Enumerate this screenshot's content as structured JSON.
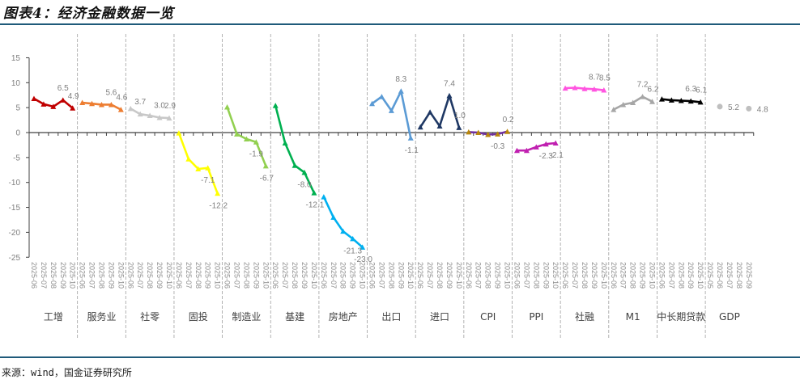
{
  "title": "图表4：经济金融数据一览",
  "source": "来源：wind，国金证券研究所",
  "chart_data": {
    "type": "line",
    "title": "图表4：经济金融数据一览",
    "xlabel": "",
    "ylabel": "",
    "ylim": [
      -25,
      15
    ],
    "yticks": [
      15,
      10,
      5,
      0,
      -5,
      -10,
      -15,
      -20,
      -25
    ],
    "grid": false,
    "groups": [
      {
        "name": "工增",
        "color": "#c00000",
        "months": [
          "2025-06",
          "2025-07",
          "2025-08",
          "2025-09",
          "2025-10"
        ],
        "values": [
          6.8,
          5.7,
          5.2,
          6.5,
          4.9
        ]
      },
      {
        "name": "服务业",
        "color": "#ed7d31",
        "months": [
          "2025-06",
          "2025-07",
          "2025-08",
          "2025-09",
          "2025-10"
        ],
        "values": [
          6.0,
          5.8,
          5.6,
          5.6,
          4.6
        ]
      },
      {
        "name": "社零",
        "color": "#c8c8c8",
        "months": [
          "2025-06",
          "2025-07",
          "2025-08",
          "2025-09",
          "2025-10"
        ],
        "values": [
          4.8,
          3.7,
          3.4,
          3.0,
          2.9
        ]
      },
      {
        "name": "固投",
        "color": "#ffff00",
        "months": [
          "2025-06",
          "2025-07",
          "2025-08",
          "2025-09",
          "2025-10"
        ],
        "values": [
          -0.1,
          -5.3,
          -7.3,
          -7.1,
          -12.2
        ]
      },
      {
        "name": "制造业",
        "color": "#92d050",
        "months": [
          "2025-06",
          "2025-07",
          "2025-08",
          "2025-09",
          "2025-10"
        ],
        "values": [
          5.1,
          -0.3,
          -1.3,
          -1.9,
          -6.7
        ]
      },
      {
        "name": "基建",
        "color": "#00b050",
        "months": [
          "2025-06",
          "2025-07",
          "2025-08",
          "2025-09",
          "2025-10"
        ],
        "values": [
          5.4,
          -2.1,
          -6.6,
          -8.0,
          -12.1
        ]
      },
      {
        "name": "房地产",
        "color": "#00b0f0",
        "months": [
          "2025-06",
          "2025-07",
          "2025-08",
          "2025-09",
          "2025-10"
        ],
        "values": [
          -12.9,
          -17.0,
          -19.8,
          -21.3,
          -23.0
        ]
      },
      {
        "name": "出口",
        "color": "#5b9bd5",
        "months": [
          "2025-06",
          "2025-07",
          "2025-08",
          "2025-09",
          "2025-10"
        ],
        "values": [
          5.8,
          7.2,
          4.4,
          8.3,
          -1.1
        ]
      },
      {
        "name": "进口",
        "color": "#1f3864",
        "months": [
          "2025-06",
          "2025-07",
          "2025-08",
          "2025-09",
          "2025-10"
        ],
        "values": [
          1.1,
          4.1,
          1.3,
          7.4,
          1.0
        ]
      },
      {
        "name": "CPI",
        "color": "#7030a0",
        "marker_color": "#b8860b",
        "months": [
          "2025-06",
          "2025-07",
          "2025-08",
          "2025-09",
          "2025-10"
        ],
        "values": [
          0.1,
          0.0,
          -0.4,
          -0.3,
          0.2
        ]
      },
      {
        "name": "PPI",
        "color": "#c020b0",
        "months": [
          "2025-06",
          "2025-07",
          "2025-08",
          "2025-09",
          "2025-10"
        ],
        "values": [
          -3.6,
          -3.6,
          -2.9,
          -2.3,
          -2.1
        ]
      },
      {
        "name": "社融",
        "color": "#ff55e0",
        "months": [
          "2025-06",
          "2025-07",
          "2025-08",
          "2025-09",
          "2025-10"
        ],
        "values": [
          8.9,
          9.0,
          8.8,
          8.7,
          8.5
        ]
      },
      {
        "name": "M1",
        "color": "#a6a6a6",
        "months": [
          "2025-06",
          "2025-07",
          "2025-08",
          "2025-09",
          "2025-10"
        ],
        "values": [
          4.6,
          5.6,
          6.0,
          7.2,
          6.2
        ]
      },
      {
        "name": "中长期贷款",
        "color": "#000000",
        "months": [
          "2025-06",
          "2025-07",
          "2025-08",
          "2025-09",
          "2025-10"
        ],
        "values": [
          6.7,
          6.5,
          6.4,
          6.3,
          6.1
        ]
      },
      {
        "name": "GDP",
        "color": "#bfbfbf",
        "dots": true,
        "months": [
          "2025-05",
          "2025-06",
          "2025-07",
          "2025-08",
          "2025-09"
        ],
        "values": [
          null,
          5.2,
          null,
          null,
          4.8
        ]
      }
    ],
    "data_labels": [
      {
        "group": 0,
        "index": 3,
        "text": "6.5"
      },
      {
        "group": 0,
        "index": 4,
        "text": "4.9"
      },
      {
        "group": 1,
        "index": 3,
        "text": "5.6"
      },
      {
        "group": 1,
        "index": 4,
        "text": "4.6"
      },
      {
        "group": 2,
        "index": 1,
        "text": "3.7"
      },
      {
        "group": 2,
        "index": 3,
        "text": "3.0"
      },
      {
        "group": 2,
        "index": 4,
        "text": "2.9"
      },
      {
        "group": 3,
        "index": 3,
        "text": "-7.1"
      },
      {
        "group": 3,
        "index": 4,
        "text": "-12.2"
      },
      {
        "group": 4,
        "index": 3,
        "text": "-1.9"
      },
      {
        "group": 4,
        "index": 4,
        "text": "-6.7"
      },
      {
        "group": 5,
        "index": 3,
        "text": "-8.0"
      },
      {
        "group": 5,
        "index": 4,
        "text": "-12.1"
      },
      {
        "group": 6,
        "index": 3,
        "text": "-21.3"
      },
      {
        "group": 6,
        "index": 4,
        "text": "-23.0"
      },
      {
        "group": 7,
        "index": 3,
        "text": "8.3"
      },
      {
        "group": 7,
        "index": 4,
        "text": "-1.1"
      },
      {
        "group": 8,
        "index": 3,
        "text": "7.4"
      },
      {
        "group": 8,
        "index": 4,
        "text": "1.0"
      },
      {
        "group": 9,
        "index": 3,
        "text": "-0.3"
      },
      {
        "group": 9,
        "index": 4,
        "text": "0.2"
      },
      {
        "group": 10,
        "index": 3,
        "text": "-2.3"
      },
      {
        "group": 10,
        "index": 4,
        "text": "-2.1"
      },
      {
        "group": 11,
        "index": 3,
        "text": "8.7"
      },
      {
        "group": 11,
        "index": 4,
        "text": "8.5"
      },
      {
        "group": 12,
        "index": 3,
        "text": "7.2"
      },
      {
        "group": 12,
        "index": 4,
        "text": "6.2"
      },
      {
        "group": 13,
        "index": 3,
        "text": "6.3"
      },
      {
        "group": 13,
        "index": 4,
        "text": "6.1"
      },
      {
        "group": 14,
        "index": 1,
        "text": "5.2"
      },
      {
        "group": 14,
        "index": 4,
        "text": "4.8"
      }
    ]
  }
}
